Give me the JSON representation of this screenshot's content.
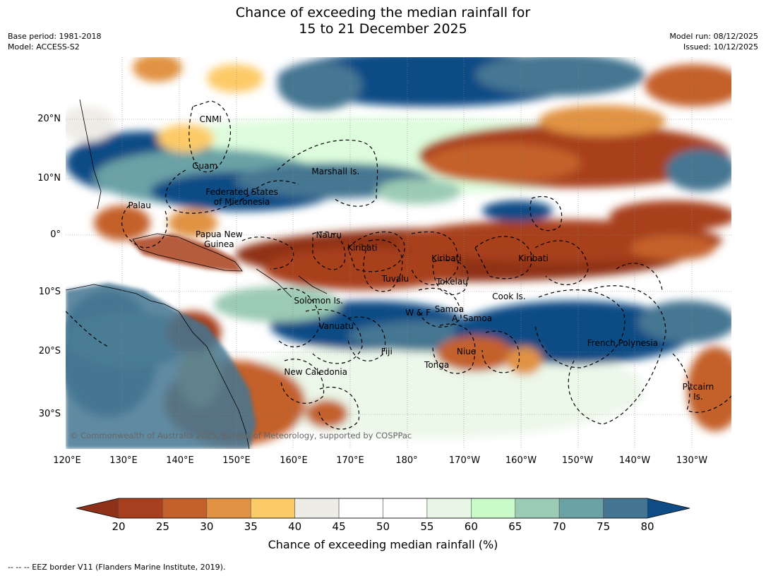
{
  "header": {
    "title_line1": "Chance of exceeding the median rainfall for",
    "title_line2": "15 to 21 December 2025",
    "base_period": "Base period: 1981-2018",
    "model": "Model: ACCESS-S2",
    "model_run": "Model run: 08/12/2025",
    "issued": "Issued: 10/12/2025"
  },
  "axes": {
    "lat_ticks": [
      "20°N",
      "10°N",
      "0°",
      "10°S",
      "20°S",
      "30°S"
    ],
    "lon_ticks": [
      "120°E",
      "130°E",
      "140°E",
      "150°E",
      "160°E",
      "170°E",
      "180°",
      "170°W",
      "160°W",
      "150°W",
      "140°W",
      "130°W"
    ],
    "lon_range": [
      120,
      237
    ],
    "lat_range": [
      -36,
      30
    ]
  },
  "regions": [
    {
      "label": "CNMI",
      "lon": 145.5,
      "lat": 20.0
    },
    {
      "label": "Guam",
      "lon": 144.5,
      "lat": 12.2
    },
    {
      "label": "Marshall Is.",
      "lon": 167.5,
      "lat": 11.2
    },
    {
      "label": "Federated States\nof Micronesia",
      "lon": 151.0,
      "lat": 6.8
    },
    {
      "label": "Palau",
      "lon": 133.0,
      "lat": 5.2
    },
    {
      "label": "Papua New\nGuinea",
      "lon": 147.0,
      "lat": -0.7
    },
    {
      "label": "Nauru",
      "lon": 166.3,
      "lat": 0.0
    },
    {
      "label": "Kiribati",
      "lon": 172.2,
      "lat": -2.2
    },
    {
      "label": "Kiribati",
      "lon": 187.0,
      "lat": -4.1
    },
    {
      "label": "Kiribati",
      "lon": 202.3,
      "lat": -4.1
    },
    {
      "label": "Tuvalu",
      "lon": 178.0,
      "lat": -7.7
    },
    {
      "label": "Tokelau",
      "lon": 188.0,
      "lat": -8.1
    },
    {
      "label": "Cook Is.",
      "lon": 198.0,
      "lat": -10.7
    },
    {
      "label": "Solomon Is.",
      "lon": 164.5,
      "lat": -11.4
    },
    {
      "label": "Samoa",
      "lon": 187.5,
      "lat": -12.8
    },
    {
      "label": "W & F",
      "lon": 182.0,
      "lat": -13.4
    },
    {
      "label": "A. Samoa",
      "lon": 191.5,
      "lat": -14.4
    },
    {
      "label": "Vanuatu",
      "lon": 167.6,
      "lat": -15.6
    },
    {
      "label": "French Polynesia",
      "lon": 218.0,
      "lat": -18.5
    },
    {
      "label": "Fiji",
      "lon": 176.5,
      "lat": -19.9
    },
    {
      "label": "Niue",
      "lon": 190.5,
      "lat": -19.9
    },
    {
      "label": "Tonga",
      "lon": 185.3,
      "lat": -22.0
    },
    {
      "label": "New Caledonia",
      "lon": 164.0,
      "lat": -23.1
    },
    {
      "label": "Pitcairn\nIs.",
      "lon": 231.3,
      "lat": -26.3
    }
  ],
  "copyright": "© Commonwealth of Australia 2025, Bureau of Meteorology, supported by COSPPac",
  "colorbar": {
    "label": "Chance of exceeding median rainfall (%)",
    "ticks": [
      "20",
      "25",
      "30",
      "35",
      "40",
      "45",
      "50",
      "55",
      "60",
      "65",
      "70",
      "75",
      "80"
    ],
    "low_extend_color": "#8f3019",
    "high_extend_color": "#0f4c85",
    "colors": [
      "#a8401f",
      "#c4602c",
      "#e19343",
      "#fdca68",
      "#eeece6",
      "#ffffff",
      "#ffffff",
      "#e7f6e5",
      "#c8fbc7",
      "#9bcbb4",
      "#6aa2a6",
      "#447692"
    ]
  },
  "footnote": "--  --  -- EEZ border V11 (Flanders Marine Institute, 2019)."
}
